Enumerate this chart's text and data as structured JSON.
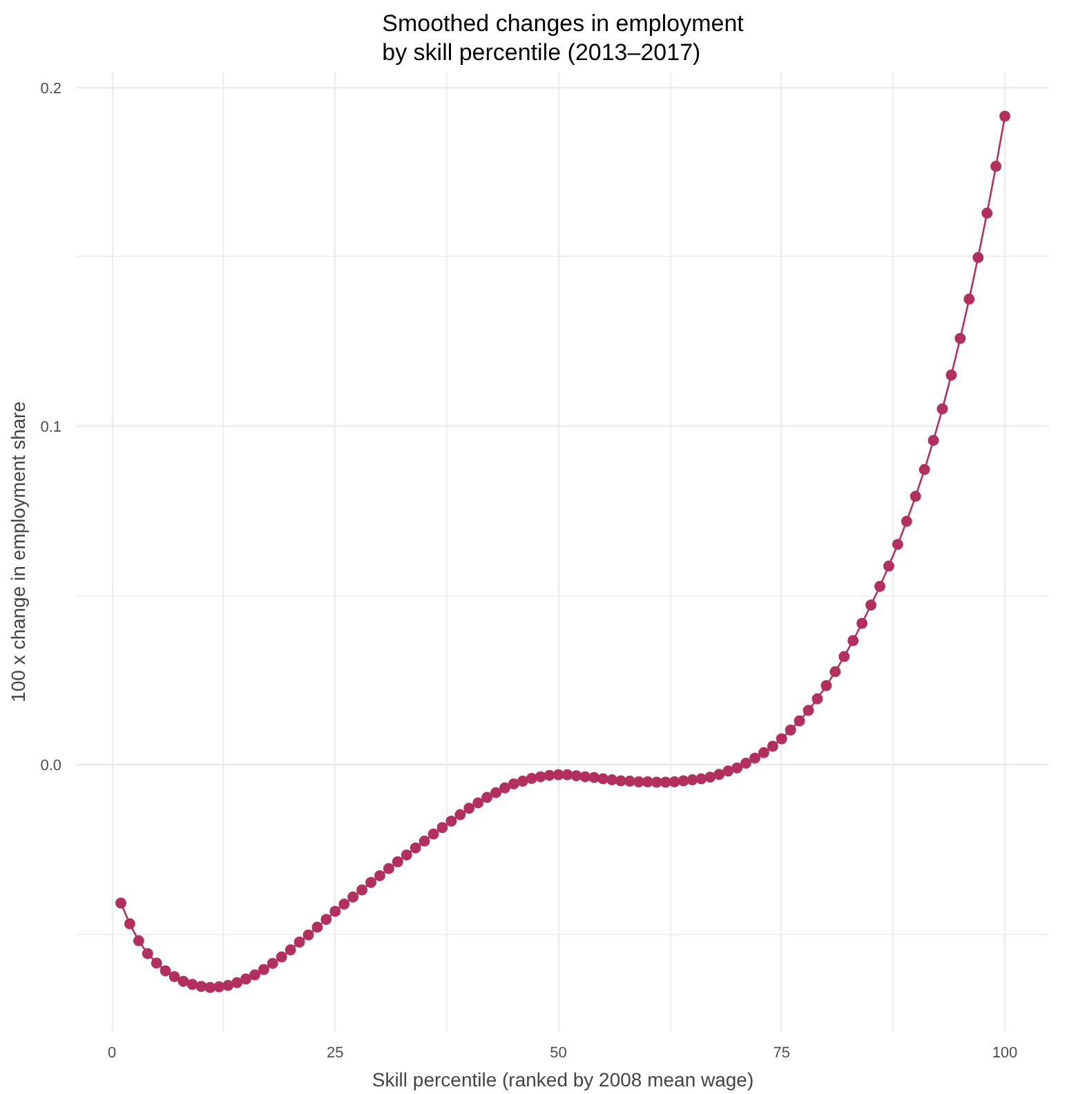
{
  "chart_data": {
    "type": "line",
    "title": "Smoothed changes in employment\n by skill percentile (2013–2017)",
    "xlabel": "Skill percentile (ranked by 2008 mean wage)",
    "ylabel": "100 x change in employment share",
    "x": [
      1,
      2,
      3,
      4,
      5,
      6,
      7,
      8,
      9,
      10,
      11,
      12,
      13,
      14,
      15,
      16,
      17,
      18,
      19,
      20,
      21,
      22,
      23,
      24,
      25,
      26,
      27,
      28,
      29,
      30,
      31,
      32,
      33,
      34,
      35,
      36,
      37,
      38,
      39,
      40,
      41,
      42,
      43,
      44,
      45,
      46,
      47,
      48,
      49,
      50,
      51,
      52,
      53,
      54,
      55,
      56,
      57,
      58,
      59,
      60,
      61,
      62,
      63,
      64,
      65,
      66,
      67,
      68,
      69,
      70,
      71,
      72,
      73,
      74,
      75,
      76,
      77,
      78,
      79,
      80,
      81,
      82,
      83,
      84,
      85,
      86,
      87,
      88,
      89,
      90,
      91,
      92,
      93,
      94,
      95,
      96,
      97,
      98,
      99,
      100
    ],
    "series": [
      {
        "color": "#b2305e",
        "values": [
          -0.0408,
          -0.0469,
          -0.0519,
          -0.0557,
          -0.0585,
          -0.0608,
          -0.0625,
          -0.0639,
          -0.0648,
          -0.0654,
          -0.0657,
          -0.0655,
          -0.0651,
          -0.0643,
          -0.0632,
          -0.062,
          -0.0604,
          -0.0586,
          -0.0567,
          -0.0546,
          -0.0523,
          -0.0502,
          -0.0479,
          -0.0456,
          -0.0432,
          -0.0411,
          -0.039,
          -0.0369,
          -0.0347,
          -0.0327,
          -0.0306,
          -0.0286,
          -0.0266,
          -0.0245,
          -0.0225,
          -0.0204,
          -0.0185,
          -0.0166,
          -0.0147,
          -0.0128,
          -0.0112,
          -0.0096,
          -0.0082,
          -0.0068,
          -0.0056,
          -0.0048,
          -0.004,
          -0.0035,
          -0.0031,
          -0.0029,
          -0.0029,
          -0.0032,
          -0.0035,
          -0.0037,
          -0.0041,
          -0.0044,
          -0.0047,
          -0.0048,
          -0.005,
          -0.005,
          -0.0051,
          -0.0051,
          -0.005,
          -0.0047,
          -0.0044,
          -0.0041,
          -0.0036,
          -0.0028,
          -0.0018,
          -0.0009,
          0.0005,
          0.002,
          0.0036,
          0.0055,
          0.0077,
          0.0103,
          0.013,
          0.0161,
          0.0195,
          0.0234,
          0.0275,
          0.032,
          0.0367,
          0.0418,
          0.0472,
          0.0527,
          0.0587,
          0.0651,
          0.0719,
          0.0793,
          0.0872,
          0.0958,
          0.1051,
          0.1151,
          0.1259,
          0.1375,
          0.1498,
          0.1629,
          0.1767,
          0.1915
        ]
      }
    ],
    "xlim": [
      -3.95,
      104.95
    ],
    "ylim": [
      -0.0786,
      0.2044
    ],
    "xticks": [
      0,
      25,
      50,
      75,
      100
    ],
    "yticks": [
      {
        "value": 0,
        "label": "0.0"
      },
      {
        "value": 0.1,
        "label": "0.1"
      },
      {
        "value": 0.2,
        "label": "0.2"
      }
    ],
    "grid": true,
    "marker": "circle",
    "line_style": "solid"
  }
}
